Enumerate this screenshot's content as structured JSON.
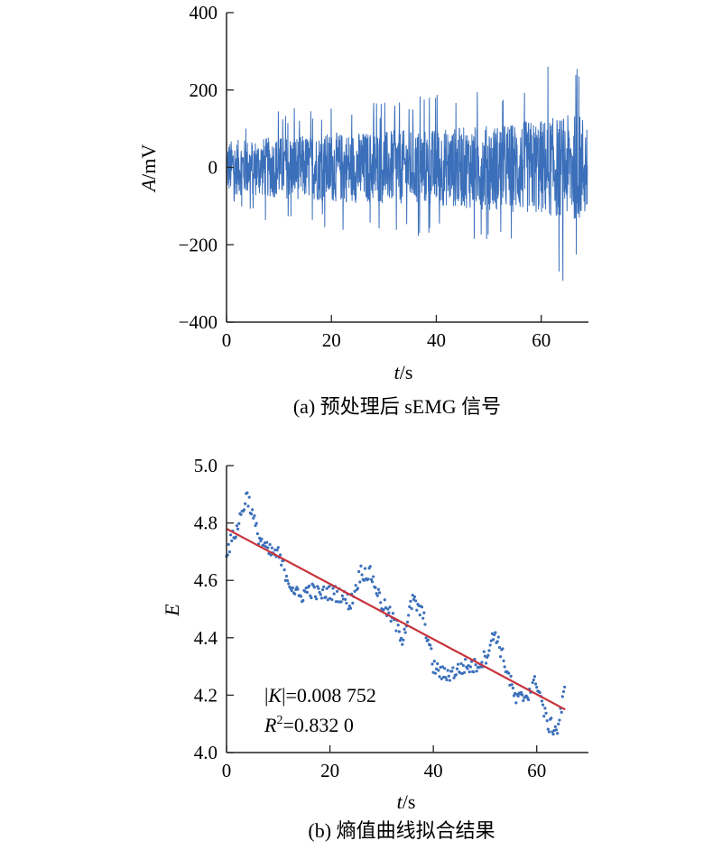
{
  "chart_data": [
    {
      "type": "line",
      "caption": "(a) 预处理后 sEMG 信号",
      "xlabel_var": "t",
      "xlabel_unit": "/s",
      "ylabel_var": "A",
      "ylabel_unit": "/mV",
      "xlim": [
        0,
        69
      ],
      "ylim": [
        -400,
        400
      ],
      "xticks": [
        0,
        20,
        40,
        60
      ],
      "yticks": [
        -400,
        -200,
        0,
        200,
        400
      ],
      "ytick_labels": [
        "−400",
        "−200",
        "0",
        "200",
        "400"
      ],
      "series_color": "#3b6fba",
      "duration_s": 68.8,
      "envelope": [
        {
          "t": 0,
          "amp": 70,
          "peak": 100
        },
        {
          "t": 10,
          "amp": 80,
          "peak": 150
        },
        {
          "t": 20,
          "amp": 90,
          "peak": 160
        },
        {
          "t": 30,
          "amp": 95,
          "peak": 170
        },
        {
          "t": 40,
          "amp": 100,
          "peak": 190
        },
        {
          "t": 50,
          "amp": 110,
          "peak": 210
        },
        {
          "t": 60,
          "amp": 125,
          "peak": 250
        },
        {
          "t": 65,
          "amp": 135,
          "peak": 315
        },
        {
          "t": 68.8,
          "amp": 140,
          "peak": 230
        }
      ]
    },
    {
      "type": "scatter",
      "caption": "(b) 熵值曲线拟合结果",
      "xlabel_var": "t",
      "xlabel_unit": "/s",
      "ylabel_var": "E",
      "xlim": [
        0,
        70
      ],
      "ylim": [
        4.0,
        5.0
      ],
      "xticks": [
        0,
        20,
        40,
        60
      ],
      "yticks": [
        4.0,
        4.2,
        4.4,
        4.6,
        4.8,
        5.0
      ],
      "ytick_labels": [
        "4.0",
        "4.2",
        "4.4",
        "4.6",
        "4.8",
        "5.0"
      ],
      "point_color": "#3b6fba",
      "fit_color": "#c8323a",
      "fit_line": {
        "x": [
          0,
          65.5
        ],
        "y": [
          4.78,
          4.15
        ]
      },
      "annotation_K_var": "K",
      "annotation_K_value": "=0.008 752",
      "annotation_R_var": "R",
      "annotation_R_sup": "2",
      "annotation_R_value": "=0.832 0",
      "trend": [
        [
          0,
          4.7
        ],
        [
          2,
          4.78
        ],
        [
          4,
          4.9
        ],
        [
          6,
          4.76
        ],
        [
          8,
          4.7
        ],
        [
          10,
          4.69
        ],
        [
          12,
          4.6
        ],
        [
          14,
          4.54
        ],
        [
          16,
          4.57
        ],
        [
          18,
          4.55
        ],
        [
          20,
          4.56
        ],
        [
          22,
          4.55
        ],
        [
          24,
          4.52
        ],
        [
          26,
          4.63
        ],
        [
          28,
          4.62
        ],
        [
          30,
          4.52
        ],
        [
          32,
          4.47
        ],
        [
          34,
          4.4
        ],
        [
          36,
          4.53
        ],
        [
          38,
          4.48
        ],
        [
          40,
          4.3
        ],
        [
          42,
          4.27
        ],
        [
          44,
          4.28
        ],
        [
          46,
          4.3
        ],
        [
          48,
          4.3
        ],
        [
          50,
          4.33
        ],
        [
          52,
          4.42
        ],
        [
          54,
          4.3
        ],
        [
          56,
          4.18
        ],
        [
          58,
          4.2
        ],
        [
          60,
          4.25
        ],
        [
          62,
          4.1
        ],
        [
          64,
          4.08
        ],
        [
          65.5,
          4.22
        ]
      ]
    }
  ]
}
